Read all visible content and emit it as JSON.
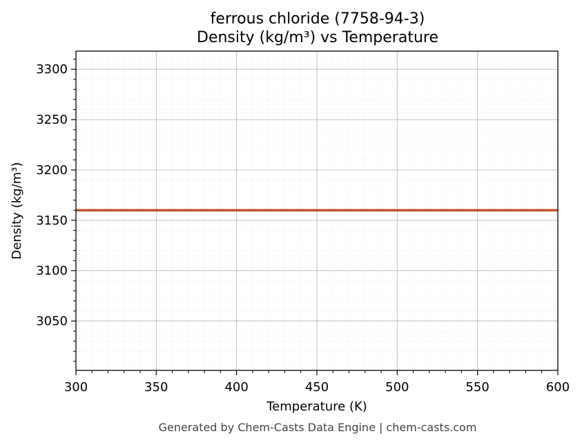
{
  "chart_data": {
    "type": "line",
    "title": "ferrous chloride (7758-94-3)",
    "subtitle": "Density (kg/m³) vs Temperature",
    "xlabel": "Temperature (K)",
    "ylabel": "Density (kg/m³)",
    "xlim": [
      300,
      600
    ],
    "ylim": [
      3001,
      3318
    ],
    "xticks": [
      300,
      350,
      400,
      450,
      500,
      550,
      600
    ],
    "yticks": [
      3050,
      3100,
      3150,
      3200,
      3250,
      3300
    ],
    "grid": true,
    "series": [
      {
        "color": "#c0522b",
        "x": [
          300,
          600
        ],
        "y": [
          3160,
          3160
        ]
      }
    ]
  },
  "footer": "Generated by Chem-Casts Data Engine | chem-casts.com"
}
